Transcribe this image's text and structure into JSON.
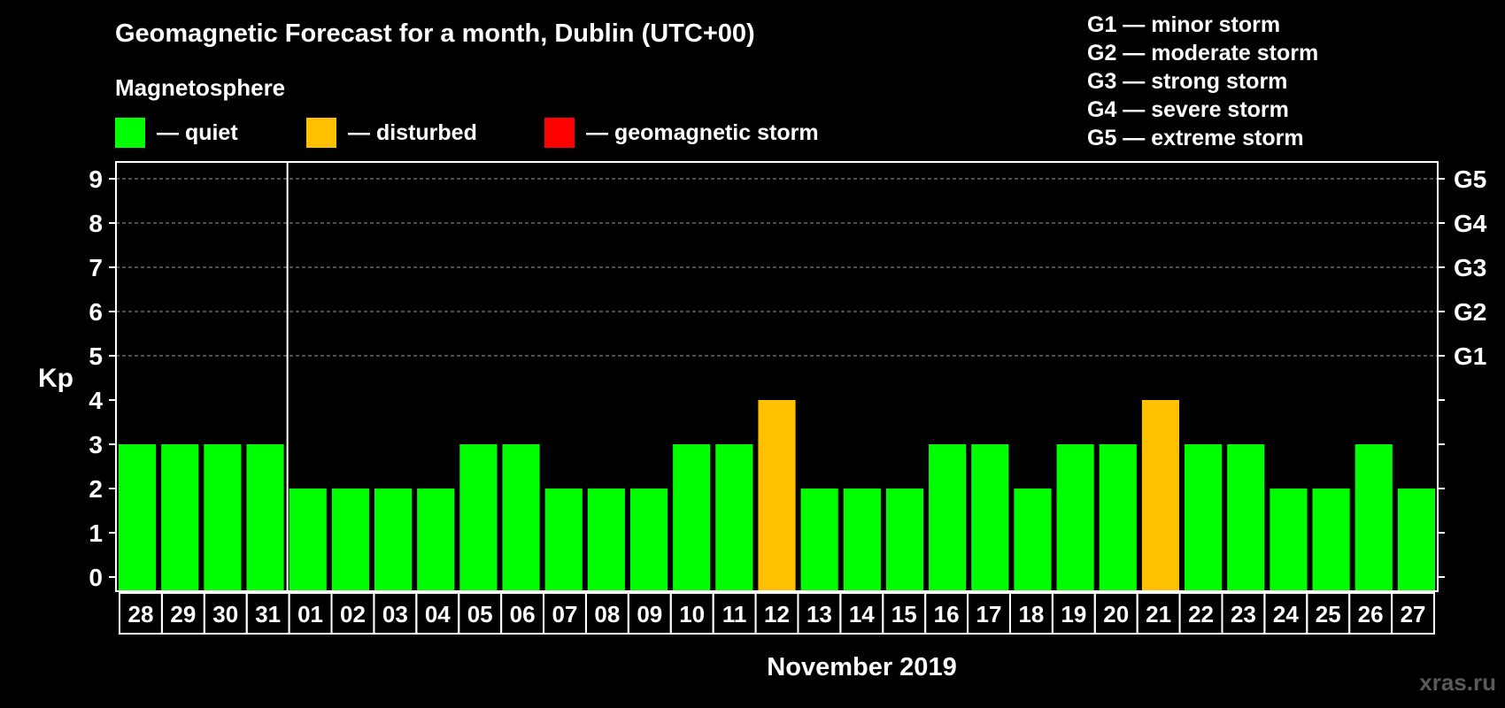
{
  "chart_data": {
    "type": "bar",
    "title": "Geomagnetic Forecast for a month, Dublin (UTC+00)",
    "subtitle": "Magnetosphere",
    "ylabel": "Kp",
    "xlabel": "November 2019",
    "ylim": [
      0,
      9
    ],
    "yticks": [
      "0",
      "1",
      "2",
      "3",
      "4",
      "5",
      "6",
      "7",
      "8",
      "9"
    ],
    "right_ticks": [
      {
        "kp": 5,
        "label": "G1"
      },
      {
        "kp": 6,
        "label": "G2"
      },
      {
        "kp": 7,
        "label": "G3"
      },
      {
        "kp": 8,
        "label": "G4"
      },
      {
        "kp": 9,
        "label": "G5"
      }
    ],
    "categories": [
      "28",
      "29",
      "30",
      "31",
      "01",
      "02",
      "03",
      "04",
      "05",
      "06",
      "07",
      "08",
      "09",
      "10",
      "11",
      "12",
      "13",
      "14",
      "15",
      "16",
      "17",
      "18",
      "19",
      "20",
      "21",
      "22",
      "23",
      "24",
      "25",
      "26",
      "27"
    ],
    "values": [
      3,
      3,
      3,
      3,
      2,
      2,
      2,
      2,
      3,
      3,
      2,
      2,
      2,
      3,
      3,
      4,
      2,
      2,
      2,
      3,
      3,
      2,
      3,
      3,
      4,
      3,
      3,
      2,
      2,
      3,
      2
    ],
    "status": [
      "quiet",
      "quiet",
      "quiet",
      "quiet",
      "quiet",
      "quiet",
      "quiet",
      "quiet",
      "quiet",
      "quiet",
      "quiet",
      "quiet",
      "quiet",
      "quiet",
      "quiet",
      "disturbed",
      "quiet",
      "quiet",
      "quiet",
      "quiet",
      "quiet",
      "quiet",
      "quiet",
      "quiet",
      "disturbed",
      "quiet",
      "quiet",
      "quiet",
      "quiet",
      "quiet",
      "quiet"
    ],
    "month_divider_after_index": 3,
    "grid": true,
    "legend": [
      {
        "key": "quiet",
        "label": "— quiet",
        "color": "#00ff00"
      },
      {
        "key": "disturbed",
        "label": "— disturbed",
        "color": "#ffc000"
      },
      {
        "key": "storm",
        "label": "— geomagnetic storm",
        "color": "#ff0000"
      }
    ],
    "storm_levels": [
      "G1 — minor storm",
      "G2 — moderate storm",
      "G3 — strong storm",
      "G4 — severe storm",
      "G5 — extreme storm"
    ]
  },
  "watermark": "xras.ru"
}
